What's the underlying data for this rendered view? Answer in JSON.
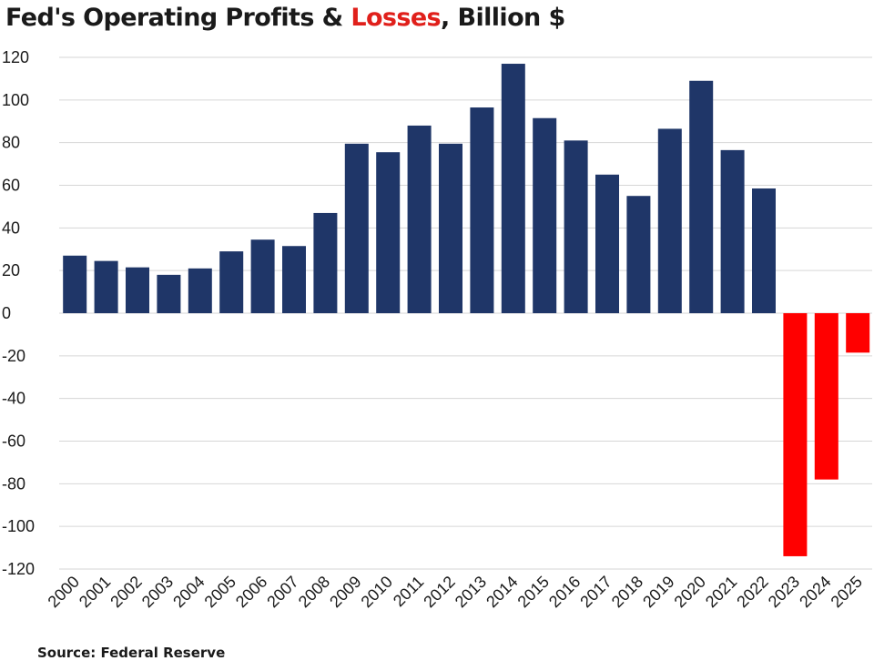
{
  "title": {
    "part1": "Fed's Operating Profits & ",
    "part2": "Losses",
    "part3": ", Billion $"
  },
  "source": "Source: Federal Reserve",
  "colors": {
    "profit": "#1f3668",
    "loss": "#ff0000",
    "loss_text": "#e0201b",
    "grid": "#d6d6d6"
  },
  "chart_data": {
    "type": "bar",
    "title": "Fed's Operating Profits & Losses, Billion $",
    "xlabel": "",
    "ylabel": "",
    "categories": [
      "2000",
      "2001",
      "2002",
      "2003",
      "2004",
      "2005",
      "2006",
      "2007",
      "2008",
      "2009",
      "2010",
      "2011",
      "2012",
      "2013",
      "2014",
      "2015",
      "2016",
      "2017",
      "2018",
      "2019",
      "2020",
      "2021",
      "2022",
      "2023",
      "2024",
      "2025"
    ],
    "values": [
      27,
      24.5,
      21.5,
      18,
      21,
      29,
      34.5,
      31.5,
      47,
      79.5,
      75.5,
      88,
      79.5,
      96.5,
      117,
      91.5,
      81,
      65,
      55,
      86.5,
      109,
      76.5,
      58.5,
      -114,
      -78,
      -18.5
    ],
    "ylim": [
      -120,
      120
    ],
    "yticks": [
      120,
      100,
      80,
      60,
      40,
      20,
      0,
      -20,
      -40,
      -60,
      -80,
      -100,
      -120
    ],
    "grid": true,
    "legend": "none"
  }
}
